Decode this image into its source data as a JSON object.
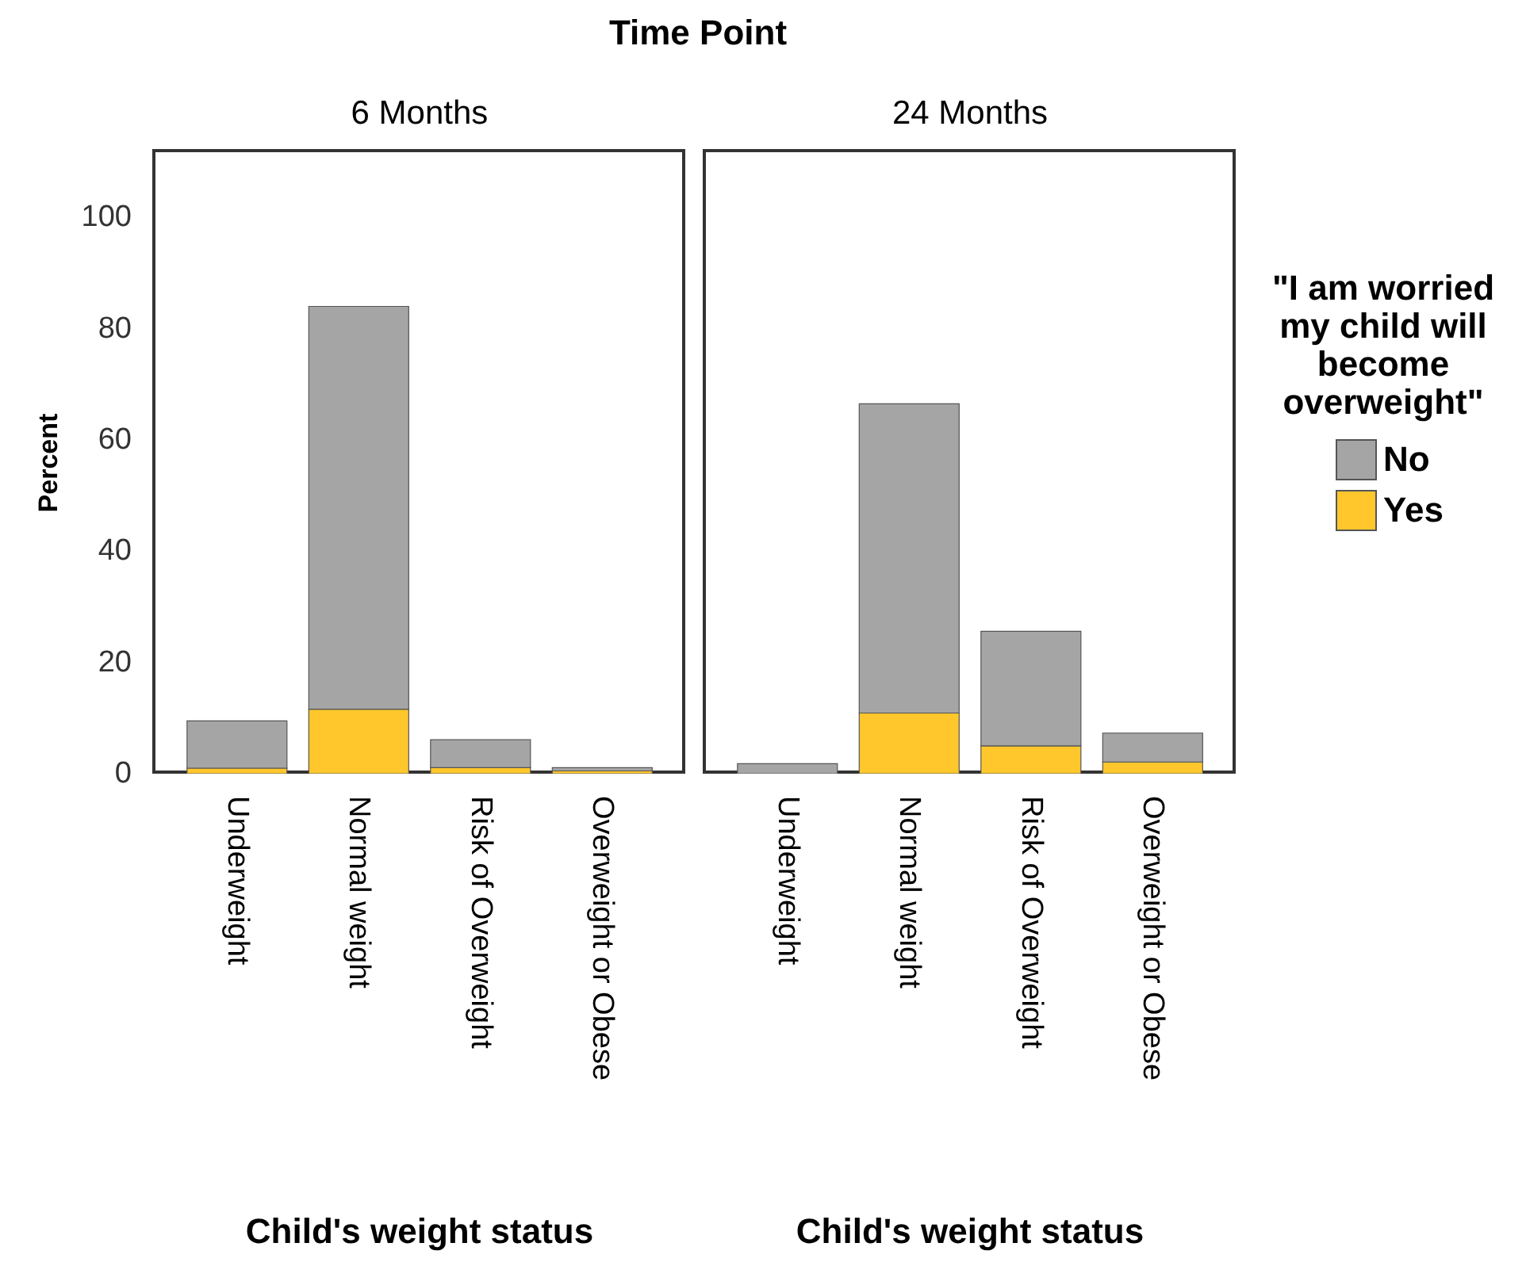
{
  "chart_data": [
    {
      "type": "bar",
      "title": "Time Point",
      "subtitle": "6 Months",
      "xlabel": "Child's weight status",
      "ylabel": "Percent",
      "categories": [
        "Underweight",
        "Normal weight",
        "Risk of Overweight",
        "Overweight or Obese"
      ],
      "stacked": true,
      "series": [
        {
          "color": "#ffc72c",
          "values": [
            1.0,
            11.6,
            1.1,
            0.5
          ]
        },
        {
          "color": "#a5a5a5",
          "values": [
            8.5,
            72.4,
            5.0,
            0.6
          ]
        }
      ],
      "ylim": [
        0,
        112
      ],
      "yticks": [
        0,
        20,
        40,
        60,
        80,
        100
      ],
      "grid": false
    },
    {
      "type": "bar",
      "subtitle": "24 Months",
      "xlabel": "Child's weight status",
      "categories": [
        "Underweight",
        "Normal weight",
        "Risk of Overweight",
        "Overweight or Obese"
      ],
      "stacked": true,
      "series": [
        {
          "name": "Yes",
          "color": "#ffc72c",
          "values": [
            0,
            10.9,
            5.0,
            2.1
          ]
        },
        {
          "name": "No",
          "color": "#a5a5a5",
          "values": [
            1.8,
            55.6,
            20.6,
            5.2
          ]
        }
      ],
      "ylim": [
        0,
        112
      ],
      "yticks": [
        0,
        20,
        40,
        60,
        80,
        100
      ],
      "tick_labels": "x",
      "grid": false,
      "legend": "right",
      "legend_title": "\"I am worried my child will become overweight\""
    }
  ]
}
